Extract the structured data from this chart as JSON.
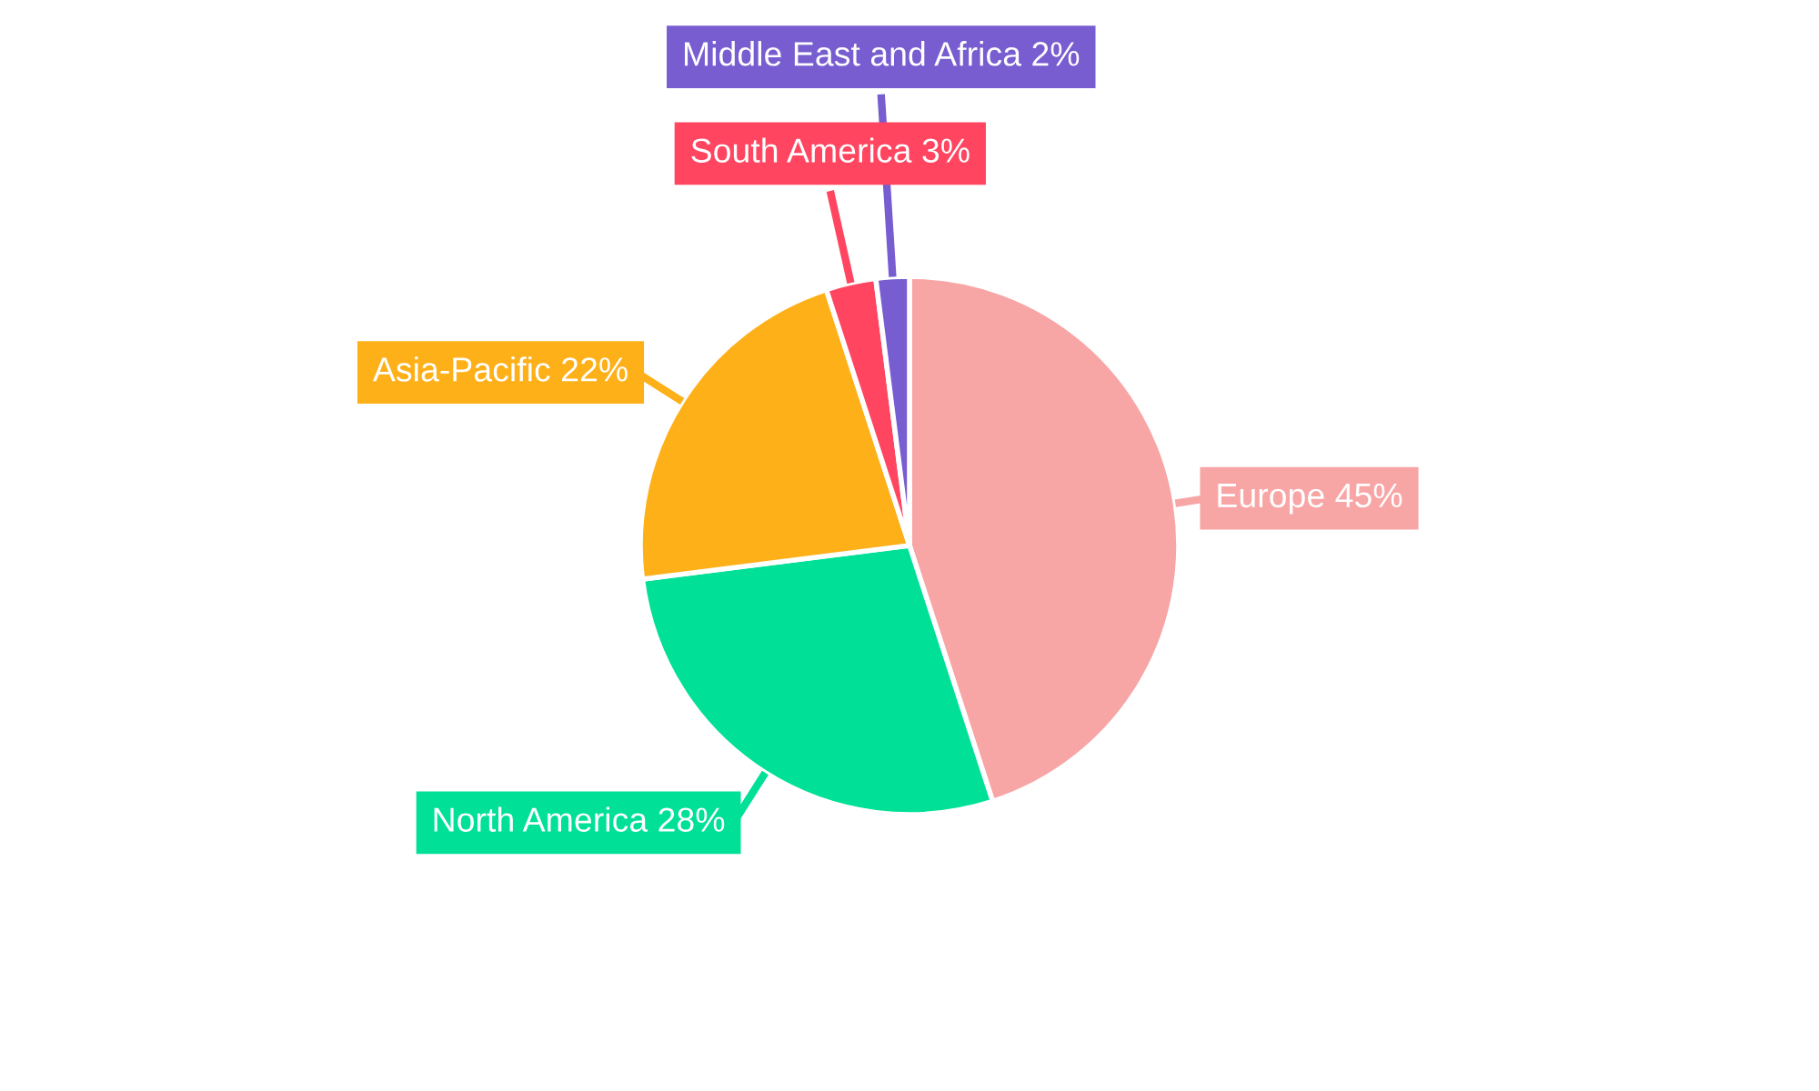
{
  "chart_data": {
    "type": "pie",
    "categories": [
      "Europe",
      "North America",
      "Asia-Pacific",
      "South America",
      "Middle East and Africa"
    ],
    "values": [
      45,
      28,
      22,
      3,
      2
    ],
    "value_labels": [
      "45%",
      "28%",
      "22%",
      "3%",
      "2%"
    ],
    "colors": [
      "#f8a5a6",
      "#00e096",
      "#feb019",
      "#ff4560",
      "#775dd0"
    ],
    "legend": false
  }
}
